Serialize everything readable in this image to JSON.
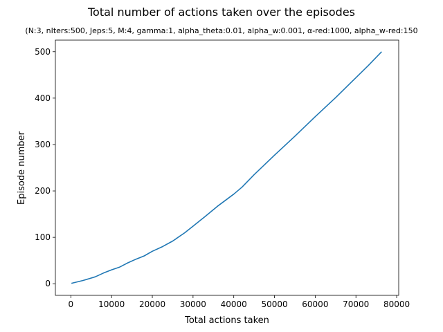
{
  "chart_data": {
    "type": "line",
    "title": "Total number of actions taken over the episodes",
    "subtitle": "(N:3, nIters:500, Jeps:5, M:4, gamma:1, alpha_theta:0.01, alpha_w:0.001, α-red:1000, alpha_w-red:150",
    "xlabel": "Total actions taken",
    "ylabel": "Episode number",
    "xlim": [
      -3800,
      80500
    ],
    "ylim": [
      -25,
      525
    ],
    "xticks": [
      0,
      10000,
      20000,
      30000,
      40000,
      50000,
      60000,
      70000,
      80000
    ],
    "xtick_labels": [
      "0",
      "10000",
      "20000",
      "30000",
      "40000",
      "50000",
      "60000",
      "70000",
      "80000"
    ],
    "yticks": [
      0,
      100,
      200,
      300,
      400,
      500
    ],
    "ytick_labels": [
      "0",
      "100",
      "200",
      "300",
      "400",
      "500"
    ],
    "grid": false,
    "series": [
      {
        "color": "#1f77b4",
        "x": [
          150,
          3000,
          6000,
          8000,
          10000,
          12000,
          14000,
          16000,
          18000,
          20000,
          22500,
          25000,
          28000,
          30000,
          33000,
          36000,
          40000,
          42000,
          45000,
          50000,
          55000,
          60000,
          65000,
          70000,
          73000,
          76300
        ],
        "y": [
          1,
          7,
          15,
          23,
          30,
          36,
          45,
          53,
          60,
          70,
          80,
          92,
          110,
          124,
          145,
          167,
          193,
          208,
          235,
          277,
          318,
          360,
          401,
          444,
          470,
          500
        ]
      }
    ]
  }
}
